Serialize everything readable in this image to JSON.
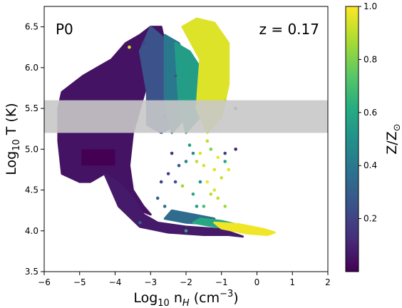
{
  "chart_data": {
    "type": "heatmap",
    "title": "",
    "xlabel_base": "Log",
    "xlabel_sub": "10",
    "xlabel_var": " n",
    "xlabel_var_sub": "H",
    "xlabel_unit": " (cm",
    "xlabel_unit_sup": "−3",
    "xlabel_close": ")",
    "ylabel_base": "Log",
    "ylabel_sub": "10",
    "ylabel_rest": " T (K)",
    "xlim": [
      -6,
      2
    ],
    "ylim": [
      3.5,
      6.75
    ],
    "xticks": [
      -6,
      -5,
      -4,
      -3,
      -2,
      -1,
      0,
      1,
      2
    ],
    "xtick_labels": [
      "−6",
      "−5",
      "−4",
      "−3",
      "−2",
      "−1",
      "0",
      "1",
      "2"
    ],
    "yticks": [
      3.5,
      4.0,
      4.5,
      5.0,
      5.5,
      6.0,
      6.5
    ],
    "ytick_labels": [
      "3.5",
      "4.0",
      "4.5",
      "5.0",
      "5.5",
      "6.0",
      "6.5"
    ],
    "grid": false,
    "annotations": [
      {
        "text": "P0",
        "position": "top-left"
      },
      {
        "text": "z = 0.17",
        "position": "top-right"
      }
    ],
    "band": {
      "y": [
        5.2,
        5.6
      ],
      "color": "#c8c8c8"
    },
    "colorbar": {
      "label_base": "Z/Z",
      "label_sub": "⊙",
      "range": [
        0,
        1
      ],
      "ticks": [
        0.2,
        0.4,
        0.6,
        0.8,
        1.0
      ],
      "tick_labels": [
        "0.2",
        "0.4",
        "0.6",
        "0.8",
        "1.0"
      ],
      "colormap": "viridis"
    },
    "regions": [
      {
        "shape": "polygon",
        "z": 0.05,
        "points": [
          [
            -5.5,
            4.7
          ],
          [
            -5.6,
            5.1
          ],
          [
            -5.6,
            5.5
          ],
          [
            -5.5,
            5.7
          ],
          [
            -5.2,
            5.8
          ],
          [
            -4.9,
            5.9
          ],
          [
            -4.5,
            6.0
          ],
          [
            -4.1,
            6.1
          ],
          [
            -3.7,
            6.3
          ],
          [
            -3.3,
            6.4
          ],
          [
            -3.0,
            6.5
          ],
          [
            -2.7,
            6.5
          ],
          [
            -2.6,
            6.3
          ],
          [
            -2.8,
            6.0
          ],
          [
            -3.1,
            5.8
          ],
          [
            -3.3,
            5.5
          ],
          [
            -3.5,
            5.2
          ],
          [
            -3.6,
            4.8
          ],
          [
            -3.5,
            4.5
          ],
          [
            -3.2,
            4.3
          ],
          [
            -3.0,
            4.2
          ],
          [
            -3.6,
            4.3
          ],
          [
            -4.0,
            4.5
          ],
          [
            -4.3,
            4.7
          ],
          [
            -4.7,
            4.6
          ],
          [
            -5.0,
            4.6
          ]
        ]
      },
      {
        "shape": "polygon",
        "z": 0.07,
        "points": [
          [
            -4.3,
            4.7
          ],
          [
            -3.9,
            4.3
          ],
          [
            -3.3,
            4.05
          ],
          [
            -2.5,
            3.98
          ],
          [
            -1.5,
            3.95
          ],
          [
            -0.8,
            3.95
          ],
          [
            -0.4,
            3.93
          ],
          [
            -1.0,
            4.02
          ],
          [
            -2.0,
            4.05
          ],
          [
            -2.8,
            4.1
          ],
          [
            -3.2,
            4.2
          ],
          [
            -3.5,
            4.4
          ],
          [
            -3.8,
            4.55
          ]
        ]
      },
      {
        "shape": "polygon",
        "z": 0.25,
        "points": [
          [
            -3.0,
            6.5
          ],
          [
            -2.6,
            6.35
          ],
          [
            -2.3,
            6.1
          ],
          [
            -2.1,
            5.7
          ],
          [
            -2.3,
            5.3
          ],
          [
            -2.7,
            5.2
          ],
          [
            -3.1,
            5.3
          ],
          [
            -3.1,
            5.7
          ],
          [
            -3.3,
            6.2
          ]
        ]
      },
      {
        "shape": "polygon",
        "z": 0.4,
        "points": [
          [
            -2.6,
            6.4
          ],
          [
            -2.2,
            6.3
          ],
          [
            -1.9,
            6.0
          ],
          [
            -2.0,
            5.4
          ],
          [
            -2.4,
            5.2
          ],
          [
            -2.6,
            5.6
          ]
        ]
      },
      {
        "shape": "polygon",
        "z": 0.55,
        "points": [
          [
            -2.3,
            6.3
          ],
          [
            -1.9,
            6.2
          ],
          [
            -1.6,
            6.0
          ],
          [
            -1.6,
            5.4
          ],
          [
            -2.0,
            5.2
          ],
          [
            -2.2,
            5.6
          ]
        ]
      },
      {
        "shape": "polygon",
        "z": 0.35,
        "points": [
          [
            -2.4,
            4.25
          ],
          [
            -1.8,
            4.2
          ],
          [
            -1.2,
            4.15
          ],
          [
            -1.2,
            4.08
          ],
          [
            -2.0,
            4.1
          ],
          [
            -2.6,
            4.15
          ]
        ]
      },
      {
        "shape": "polygon",
        "z": 0.6,
        "points": [
          [
            -1.6,
            4.15
          ],
          [
            -1.0,
            4.12
          ],
          [
            -0.6,
            4.08
          ],
          [
            -0.7,
            4.03
          ],
          [
            -1.3,
            4.06
          ],
          [
            -1.8,
            4.1
          ]
        ]
      },
      {
        "shape": "polygon",
        "z": 0.95,
        "points": [
          [
            -1.7,
            6.6
          ],
          [
            -1.2,
            6.55
          ],
          [
            -0.8,
            6.3
          ],
          [
            -0.8,
            5.8
          ],
          [
            -1.0,
            5.4
          ],
          [
            -1.4,
            5.2
          ],
          [
            -1.7,
            5.5
          ],
          [
            -1.6,
            6.1
          ],
          [
            -2.1,
            6.5
          ]
        ]
      },
      {
        "shape": "polygon",
        "z": 0.98,
        "points": [
          [
            -1.2,
            4.1
          ],
          [
            -0.5,
            4.08
          ],
          [
            0.2,
            4.02
          ],
          [
            0.5,
            3.98
          ],
          [
            0.3,
            3.95
          ],
          [
            -0.3,
            3.97
          ],
          [
            -1.0,
            4.03
          ]
        ]
      },
      {
        "shape": "rect",
        "z": 0.0,
        "x": [
          -4.95,
          -4.0
        ],
        "y": [
          4.8,
          5.0
        ]
      }
    ],
    "points": [
      [
        -1.6,
        4.95,
        0.95
      ],
      [
        -1.5,
        4.8,
        0.95
      ],
      [
        -1.4,
        4.6,
        0.98
      ],
      [
        -1.2,
        4.75,
        0.95
      ],
      [
        -1.3,
        4.45,
        0.9
      ],
      [
        -1.1,
        4.9,
        0.98
      ],
      [
        -1.8,
        4.95,
        0.5
      ],
      [
        -2.0,
        4.85,
        0.45
      ],
      [
        -1.9,
        5.05,
        0.55
      ],
      [
        -1.4,
        5.1,
        0.9
      ],
      [
        -1.2,
        4.5,
        0.95
      ],
      [
        -1.0,
        4.65,
        0.92
      ],
      [
        -1.5,
        4.3,
        0.7
      ],
      [
        -1.8,
        4.45,
        0.6
      ],
      [
        -2.2,
        4.8,
        0.3
      ],
      [
        -2.5,
        4.7,
        0.2
      ],
      [
        -2.3,
        4.6,
        0.25
      ],
      [
        -2.4,
        4.95,
        0.15
      ],
      [
        -2.7,
        4.6,
        0.2
      ],
      [
        -2.8,
        4.4,
        0.3
      ],
      [
        -2.6,
        5.4,
        0.1
      ],
      [
        -0.9,
        4.95,
        0.2
      ],
      [
        -0.9,
        4.85,
        0.6
      ],
      [
        -0.8,
        4.75,
        0.95
      ],
      [
        -1.3,
        5.0,
        0.8
      ],
      [
        -0.6,
        5.5,
        0.2
      ],
      [
        -0.6,
        5.0,
        0.1
      ],
      [
        -1.6,
        4.6,
        0.5
      ],
      [
        -1.7,
        4.3,
        0.55
      ],
      [
        -1.1,
        4.4,
        0.9
      ],
      [
        -0.9,
        4.3,
        0.85
      ],
      [
        -3.6,
        6.25,
        0.95
      ],
      [
        -3.2,
        6.3,
        0.2
      ],
      [
        -2.6,
        4.3,
        0.35
      ],
      [
        -3.3,
        4.1,
        0.3
      ],
      [
        -2.0,
        4.0,
        0.6
      ],
      [
        -1.1,
        6.2,
        0.95
      ],
      [
        -0.9,
        5.6,
        0.9
      ],
      [
        -1.9,
        6.5,
        0.95
      ],
      [
        -2.3,
        5.9,
        0.3
      ],
      [
        -2.1,
        4.55,
        0.85
      ],
      [
        -1.7,
        4.85,
        0.9
      ]
    ]
  }
}
